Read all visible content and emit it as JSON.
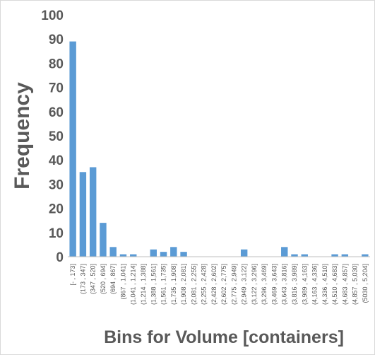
{
  "chart_data": {
    "type": "bar",
    "title": "",
    "xlabel": "Bins for Volume [containers]",
    "ylabel": "Frequency",
    "ylim": [
      0,
      100
    ],
    "yticks": [
      0,
      10,
      20,
      30,
      40,
      50,
      60,
      70,
      80,
      90,
      100
    ],
    "grid": false,
    "bar_color": "#5b9bd5",
    "categories": [
      "[- , 173]",
      "(173 , 347]",
      "(347 , 520]",
      "(520 , 694]",
      "(694 , 867]",
      "(867 , 1,041]",
      "(1,041 , 1,214]",
      "(1,214 , 1,388]",
      "(1,388 , 1,561]",
      "(1,561 , 1,735]",
      "(1,735 , 1,908]",
      "(1,908 , 2,081]",
      "(2,081 , 2,255]",
      "(2,255 , 2,428]",
      "(2,428 , 2,602]",
      "(2,602 , 2,775]",
      "(2,775 , 2,949]",
      "(2,949 , 3,122]",
      "(3,122 , 3,296]",
      "(3,296 , 3,469]",
      "(3,469 , 3,643]",
      "(3,643 , 3,816]",
      "(3,816 , 3,989]",
      "(3,989 , 4,163]",
      "(4,163 , 4,336]",
      "(4,336 , 4,510]",
      "(4,510 , 4,683]",
      "(4,683 , 4,857]",
      "(4,857 , 5,030]",
      "(5030 , 5,204]"
    ],
    "values": [
      89,
      35,
      37,
      14,
      4,
      1,
      1,
      0,
      3,
      2,
      4,
      2,
      0,
      0,
      0,
      0,
      0,
      3,
      0,
      0,
      0,
      4,
      1,
      1,
      0,
      0,
      1,
      1,
      0,
      1
    ]
  }
}
